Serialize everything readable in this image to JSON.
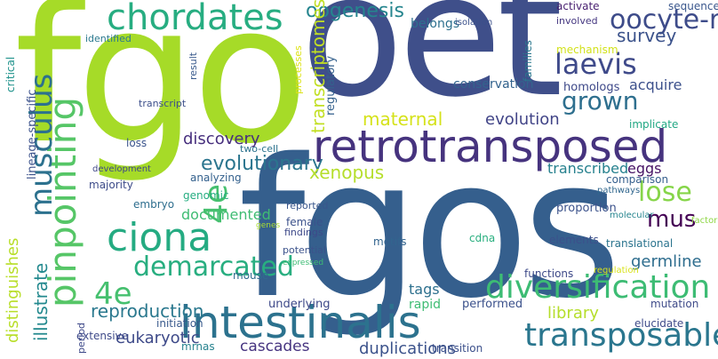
{
  "words": [
    {
      "text": "fgo",
      "color": "#a6db28"
    },
    {
      "text": "oet",
      "color": "#3f4f8a"
    },
    {
      "text": "fgos",
      "color": "#355f8d"
    },
    {
      "text": "retrotransposed",
      "color": "#46337e"
    },
    {
      "text": "intestinalis",
      "color": "#2c728e"
    },
    {
      "text": "chordates",
      "color": "#27ad81"
    },
    {
      "text": "ciona",
      "color": "#25ab82"
    },
    {
      "text": "pinpointing",
      "color": "#56c667"
    },
    {
      "text": "musculus",
      "color": "#2c718e"
    },
    {
      "text": "4e",
      "color": "#46c06f"
    },
    {
      "text": "diversification",
      "color": "#3dbc74"
    },
    {
      "text": "transposable",
      "color": "#2a768e"
    },
    {
      "text": "demarcated",
      "color": "#28ae80"
    },
    {
      "text": "laevis",
      "color": "#3f4a8a"
    },
    {
      "text": "oogenesis",
      "color": "#25858e"
    },
    {
      "text": "oocyte-restricted",
      "color": "#3e4c8a"
    },
    {
      "text": "grown",
      "color": "#2e6f8e"
    },
    {
      "text": "survey",
      "color": "#3b528b"
    },
    {
      "text": "acquire",
      "color": "#3c508b"
    },
    {
      "text": "maternal",
      "color": "#d5e21a"
    },
    {
      "text": "evolution",
      "color": "#414487"
    },
    {
      "text": "transcriptomes",
      "color": "#c2df23"
    },
    {
      "text": "discovery",
      "color": "#472f7d"
    },
    {
      "text": "evolutionary",
      "color": "#2b758e"
    },
    {
      "text": "lose",
      "color": "#86d549"
    },
    {
      "text": "mus",
      "color": "#440154"
    },
    {
      "text": "eggs",
      "color": "#471365"
    },
    {
      "text": "xenopus",
      "color": "#b5de2b"
    },
    {
      "text": "transcribed",
      "color": "#26818e"
    },
    {
      "text": "germline",
      "color": "#2e6d8e"
    },
    {
      "text": "illustrate",
      "color": "#23898e"
    },
    {
      "text": "distinguishes",
      "color": "#b8de29"
    },
    {
      "text": "reproduction",
      "color": "#2a788e"
    },
    {
      "text": "eukaryotic",
      "color": "#3e4a89"
    },
    {
      "text": "tags",
      "color": "#2d708e"
    },
    {
      "text": "library",
      "color": "#b5de2b"
    },
    {
      "text": "duplications",
      "color": "#3b528b"
    },
    {
      "text": "cascades",
      "color": "#463480"
    },
    {
      "text": "documented",
      "color": "#3fbc73"
    },
    {
      "text": "belongs",
      "color": "#2d708e"
    },
    {
      "text": "isolation",
      "color": "#3b518b"
    },
    {
      "text": "activate",
      "color": "#481f70"
    },
    {
      "text": "sequence",
      "color": "#39568c"
    },
    {
      "text": "involved",
      "color": "#453781"
    },
    {
      "text": "mechanism",
      "color": "#d2e21b"
    },
    {
      "text": "families",
      "color": "#2a778e"
    },
    {
      "text": "conservation",
      "color": "#33638d"
    },
    {
      "text": "homologs",
      "color": "#3e4989"
    },
    {
      "text": "implicate",
      "color": "#22a884"
    },
    {
      "text": "stability",
      "color": "#d8e219"
    },
    {
      "text": "identified",
      "color": "#2a788e"
    },
    {
      "text": "result",
      "color": "#38598c"
    },
    {
      "text": "processes",
      "color": "#dde318"
    },
    {
      "text": "regulatory",
      "color": "#34618d"
    },
    {
      "text": "transcript",
      "color": "#3c4f8a"
    },
    {
      "text": "critical",
      "color": "#20938c"
    },
    {
      "text": "lineage-specific",
      "color": "#3b518b"
    },
    {
      "text": "loss",
      "color": "#3a548c"
    },
    {
      "text": "two-cell",
      "color": "#2c738e"
    },
    {
      "text": "development",
      "color": "#3f4788"
    },
    {
      "text": "majority",
      "color": "#3e4c8a"
    },
    {
      "text": "analyzing",
      "color": "#34618d"
    },
    {
      "text": "genomic",
      "color": "#26ad81"
    },
    {
      "text": "embryo",
      "color": "#2e6e8e"
    },
    {
      "text": "comparison",
      "color": "#355f8d"
    },
    {
      "text": "pathways",
      "color": "#31678e"
    },
    {
      "text": "proportion",
      "color": "#3b528b"
    },
    {
      "text": "molecular",
      "color": "#25848e"
    },
    {
      "text": "factor",
      "color": "#8ed645"
    },
    {
      "text": "genes",
      "color": "#aadc32"
    },
    {
      "text": "reported",
      "color": "#39568c"
    },
    {
      "text": "female",
      "color": "#3b518b"
    },
    {
      "text": "findings",
      "color": "#3e4989"
    },
    {
      "text": "cdna",
      "color": "#29af7f"
    },
    {
      "text": "motifs",
      "color": "#32648e"
    },
    {
      "text": "elements",
      "color": "#3c508b"
    },
    {
      "text": "translational",
      "color": "#2b748e"
    },
    {
      "text": "potential",
      "color": "#3b528b"
    },
    {
      "text": "expressed",
      "color": "#3dbc74"
    },
    {
      "text": "mouse",
      "color": "#2f6c8e"
    },
    {
      "text": "functions",
      "color": "#3e4a89"
    },
    {
      "text": "regulation",
      "color": "#d8e219"
    },
    {
      "text": "underlying",
      "color": "#3e4989"
    },
    {
      "text": "rapid",
      "color": "#3fbc73"
    },
    {
      "text": "performed",
      "color": "#3b518b"
    },
    {
      "text": "mutation",
      "color": "#3e4a89"
    },
    {
      "text": "elucidate",
      "color": "#3e4a89"
    },
    {
      "text": "initiation",
      "color": "#38598c"
    },
    {
      "text": "extensive",
      "color": "#3e4a89"
    },
    {
      "text": "mrnas",
      "color": "#26828e"
    },
    {
      "text": "period",
      "color": "#3e4989"
    },
    {
      "text": "transition",
      "color": "#3c508b"
    }
  ]
}
